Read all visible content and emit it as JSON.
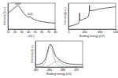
{
  "chart_data": [
    {
      "type": "line",
      "x_label": "2θ(°)",
      "y_label": "Intensity (a.u.)",
      "x": [
        10,
        14,
        18,
        21,
        23,
        25,
        27,
        29,
        32,
        36,
        40,
        43,
        46,
        50,
        55,
        60,
        65,
        70,
        75,
        80
      ],
      "series": [
        {
          "color": "#222222",
          "values": [
            62,
            70,
            78,
            84,
            88,
            90,
            86,
            78,
            66,
            54,
            46,
            48,
            42,
            36,
            32,
            29,
            27,
            25,
            24,
            23
          ]
        }
      ],
      "annotations": [
        {
          "text": "(002)",
          "x": 25,
          "y": 95
        },
        {
          "text": "(100)",
          "x": 43,
          "y": 56
        }
      ],
      "xlim": [
        10,
        80
      ],
      "ylim": [
        0,
        100
      ],
      "xticks": [
        10,
        20,
        30,
        40,
        50,
        60,
        70,
        80
      ],
      "tick_labels": "x"
    },
    {
      "type": "line",
      "x_label": "Binding energy (eV)",
      "y_label": "Intensity(a.u.)",
      "x": [
        0,
        50,
        100,
        150,
        200,
        250,
        280,
        285,
        290,
        350,
        400,
        450,
        500,
        525,
        532,
        540,
        600,
        700,
        800,
        900,
        1000,
        1100,
        1200
      ],
      "series": [
        {
          "color": "#222222",
          "values": [
            10,
            12,
            14,
            16,
            18,
            22,
            30,
            62,
            34,
            36,
            40,
            42,
            48,
            60,
            92,
            70,
            72,
            74,
            78,
            80,
            82,
            84,
            86
          ]
        }
      ],
      "xlim": [
        0,
        1200
      ],
      "ylim": [
        0,
        100
      ],
      "xticks": [
        0,
        400,
        800,
        1200
      ],
      "tick_labels": "x"
    },
    {
      "type": "line",
      "x_label": "Binding energy (eV)",
      "y_label": "Intensity (a.u.)",
      "x": [
        280,
        281,
        282,
        283,
        283.5,
        284,
        284.5,
        285,
        285.5,
        286,
        287,
        288,
        289,
        290,
        292,
        294
      ],
      "series": [
        {
          "color": "#222222",
          "values": [
            8,
            10,
            14,
            30,
            55,
            80,
            88,
            78,
            58,
            42,
            28,
            20,
            15,
            12,
            10,
            9
          ]
        },
        {
          "color": "#888888",
          "values": [
            0,
            0,
            2,
            18,
            45,
            72,
            80,
            66,
            40,
            18,
            4,
            1,
            0,
            0,
            0,
            0
          ]
        },
        {
          "color": "#888888",
          "values": [
            0,
            0,
            0,
            1,
            3,
            6,
            10,
            14,
            18,
            22,
            20,
            12,
            6,
            2,
            0,
            0
          ]
        }
      ],
      "xlim": [
        280,
        294
      ],
      "ylim": [
        0,
        100
      ],
      "xticks": [
        280,
        284,
        288,
        292
      ],
      "tick_labels": "x"
    }
  ]
}
